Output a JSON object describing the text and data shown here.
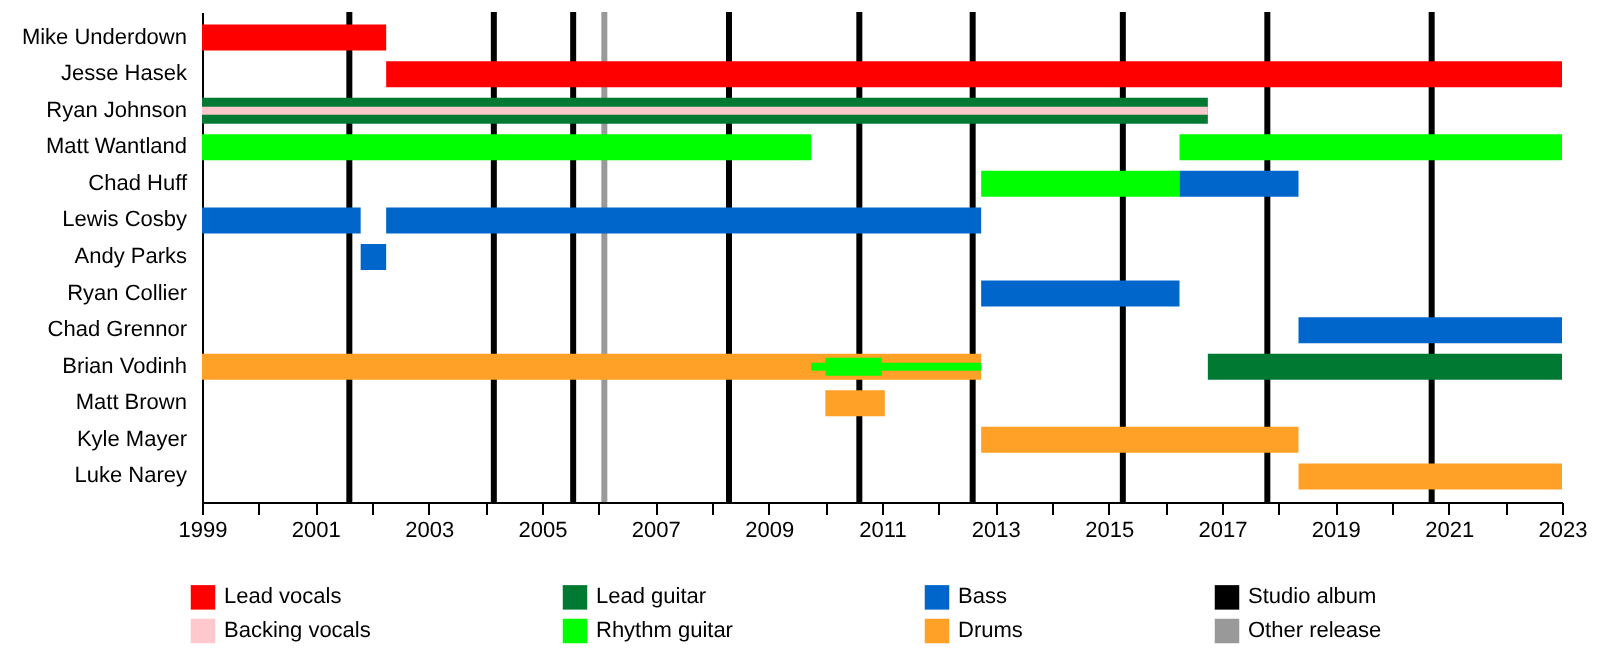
{
  "chart_data": {
    "type": "bar",
    "orientation": "horizontal",
    "categories": [
      "Mike Underdown",
      "Jesse Hasek",
      "Ryan Johnson",
      "Matt Wantland",
      "Chad Huff",
      "Lewis Cosby",
      "Andy Parks",
      "Ryan Collier",
      "Chad Grennor",
      "Brian Vodinh",
      "Matt Brown",
      "Kyle Mayer",
      "Luke Narey"
    ],
    "series": [
      {
        "name": "Lead vocals",
        "color": "#ff0000",
        "base": [
          1999,
          2002.25,
          null,
          null,
          null,
          null,
          null,
          null,
          null,
          null,
          null,
          null,
          null
        ],
        "values": [
          3.25,
          20.75,
          null,
          null,
          null,
          null,
          null,
          null,
          null,
          null,
          null,
          null,
          null
        ]
      },
      {
        "name": "Backing vocals",
        "color": "#ffc8cc",
        "base": [
          null,
          null,
          1999,
          null,
          null,
          null,
          null,
          null,
          null,
          null,
          null,
          null,
          null
        ],
        "values": [
          null,
          null,
          17.75,
          null,
          null,
          null,
          null,
          null,
          null,
          null,
          null,
          null,
          null
        ]
      },
      {
        "name": "Lead guitar",
        "color": "#007a33",
        "base": [
          null,
          null,
          1999,
          null,
          null,
          null,
          null,
          null,
          null,
          2016.75,
          null,
          null,
          null
        ],
        "values": [
          null,
          null,
          17.75,
          null,
          null,
          null,
          null,
          null,
          null,
          6.25,
          null,
          null,
          null
        ]
      },
      {
        "name": "Rhythm guitar",
        "color": "#00ff00",
        "base": [
          null,
          null,
          null,
          1999,
          2012.75,
          null,
          null,
          null,
          null,
          2009.75,
          null,
          null,
          null
        ],
        "values": [
          null,
          null,
          null,
          10.75,
          3.5,
          null,
          null,
          null,
          null,
          3,
          null,
          null,
          null
        ]
      },
      {
        "name": "Bass",
        "color": "#0066cc",
        "base": [
          null,
          null,
          null,
          null,
          2016.25,
          1999,
          2001.8,
          2012.75,
          2018.35,
          null,
          null,
          null,
          null
        ],
        "values": [
          null,
          null,
          null,
          null,
          2.1,
          2.8,
          0.45,
          3.5,
          4.65,
          null,
          null,
          null,
          null
        ]
      },
      {
        "name": "Drums",
        "color": "#ffa126",
        "base": [
          null,
          null,
          null,
          null,
          null,
          null,
          null,
          null,
          null,
          1999,
          2010,
          2012.75,
          2018.35
        ],
        "values": [
          null,
          null,
          null,
          null,
          null,
          null,
          null,
          null,
          null,
          13.75,
          1.05,
          5.6,
          4.65
        ]
      },
      {
        "color": "#00ff00",
        "base": [
          null,
          null,
          null,
          2016.25,
          null,
          null,
          null,
          null,
          null,
          2010,
          null,
          null,
          null
        ],
        "values": [
          null,
          null,
          null,
          6.75,
          null,
          null,
          null,
          null,
          null,
          1,
          null,
          null,
          null
        ]
      },
      {
        "color": "#0066cc",
        "base": [
          null,
          null,
          null,
          null,
          null,
          2002.25,
          null,
          null,
          null,
          null,
          null,
          null,
          null
        ],
        "values": [
          null,
          null,
          null,
          null,
          null,
          10.5,
          null,
          null,
          null,
          null,
          null,
          null,
          null
        ]
      }
    ],
    "xlim": [
      1999,
      2023
    ],
    "xticks": [
      1999,
      {
        "value": 2000,
        "label": null
      },
      2001,
      {
        "value": 2002,
        "label": null
      },
      2003,
      {
        "value": 2004,
        "label": null
      },
      2005,
      {
        "value": 2006,
        "label": null
      },
      2007,
      {
        "value": 2008,
        "label": null
      },
      2009,
      {
        "value": 2010,
        "label": null
      },
      2011,
      {
        "value": 2012,
        "label": null
      },
      2013,
      {
        "value": 2014,
        "label": null
      },
      2015,
      {
        "value": 2016,
        "label": null
      },
      2017,
      {
        "value": 2018,
        "label": null
      },
      2019,
      {
        "value": 2020,
        "label": null
      },
      2021,
      {
        "value": 2022,
        "label": null
      },
      2023
    ],
    "ref_lines": [
      {
        "axis": "x",
        "value": 2001.6,
        "label": "Studio album",
        "color": "#000000"
      },
      {
        "axis": "x",
        "value": 2004.15,
        "color": "#000000"
      },
      {
        "axis": "x",
        "value": 2005.55,
        "color": "#000000"
      },
      {
        "axis": "x",
        "value": 2006.1,
        "label": "Other release",
        "color": "#999999"
      },
      {
        "axis": "x",
        "value": 2008.3,
        "color": "#000000"
      },
      {
        "axis": "x",
        "value": 2010.6,
        "color": "#000000"
      },
      {
        "axis": "x",
        "value": 2012.6,
        "color": "#000000"
      },
      {
        "axis": "x",
        "value": 2015.25,
        "color": "#000000"
      },
      {
        "axis": "x",
        "value": 2017.8,
        "color": "#000000"
      },
      {
        "axis": "x",
        "value": 2020.7,
        "color": "#000000"
      }
    ],
    "legend": "bottom"
  }
}
